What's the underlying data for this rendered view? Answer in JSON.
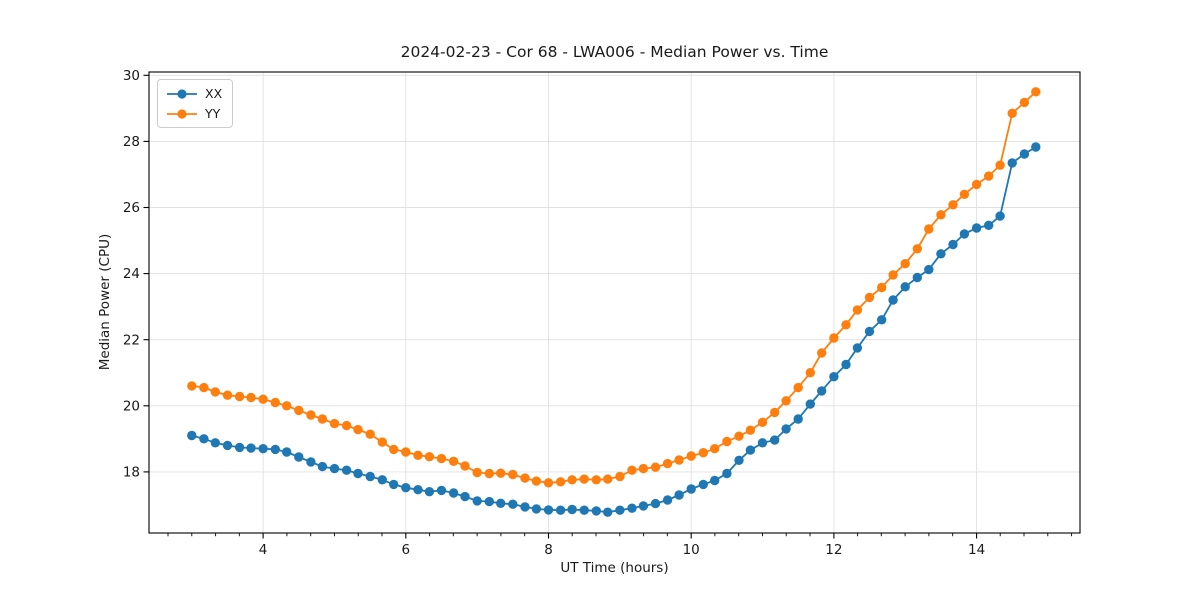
{
  "title": "2024-02-23 - Cor 68 - LWA006 - Median Power vs. Time",
  "chart_data": {
    "type": "line",
    "title": "2024-02-23 - Cor 68 - LWA006 - Median Power vs. Time",
    "xlabel": "UT Time (hours)",
    "ylabel": "Median Power (CPU)",
    "xlim": [
      2.4,
      15.45
    ],
    "ylim": [
      16.15,
      30.1
    ],
    "xticks": [
      4,
      6,
      8,
      10,
      12,
      14
    ],
    "yticks": [
      18,
      20,
      22,
      24,
      26,
      28,
      30
    ],
    "x_minor_step": 0.3333,
    "grid": true,
    "grid_color": "#e0e0e0",
    "spine_color": "#000000",
    "legend_position": "upper left",
    "marker": "circle",
    "x": [
      3.0,
      3.17,
      3.33,
      3.5,
      3.67,
      3.83,
      4.0,
      4.17,
      4.33,
      4.5,
      4.67,
      4.83,
      5.0,
      5.17,
      5.33,
      5.5,
      5.67,
      5.83,
      6.0,
      6.17,
      6.33,
      6.5,
      6.67,
      6.83,
      7.0,
      7.17,
      7.33,
      7.5,
      7.67,
      7.83,
      8.0,
      8.17,
      8.33,
      8.5,
      8.67,
      8.83,
      9.0,
      9.17,
      9.33,
      9.5,
      9.67,
      9.83,
      10.0,
      10.17,
      10.33,
      10.5,
      10.67,
      10.83,
      11.0,
      11.17,
      11.33,
      11.5,
      11.67,
      11.83,
      12.0,
      12.17,
      12.33,
      12.5,
      12.67,
      12.83,
      13.0,
      13.17,
      13.33,
      13.5,
      13.67,
      13.83,
      14.0,
      14.17,
      14.33,
      14.5,
      14.67,
      14.83
    ],
    "series": [
      {
        "name": "XX",
        "color": "#1f77b4",
        "values": [
          19.1,
          19.0,
          18.88,
          18.8,
          18.74,
          18.72,
          18.7,
          18.68,
          18.6,
          18.45,
          18.3,
          18.16,
          18.1,
          18.05,
          17.95,
          17.86,
          17.76,
          17.62,
          17.52,
          17.46,
          17.4,
          17.44,
          17.36,
          17.25,
          17.12,
          17.1,
          17.05,
          17.02,
          16.94,
          16.88,
          16.85,
          16.84,
          16.86,
          16.84,
          16.82,
          16.78,
          16.84,
          16.9,
          16.97,
          17.04,
          17.15,
          17.3,
          17.48,
          17.62,
          17.74,
          17.95,
          18.35,
          18.66,
          18.88,
          18.96,
          19.3,
          19.6,
          20.05,
          20.45,
          20.88,
          21.25,
          21.75,
          22.25,
          22.6,
          23.2,
          23.6,
          23.88,
          24.12,
          24.6,
          24.88,
          25.2,
          25.38,
          25.46,
          25.74,
          27.35,
          27.62,
          27.83
        ]
      },
      {
        "name": "YY",
        "color": "#ff7f0e",
        "values": [
          20.6,
          20.55,
          20.42,
          20.32,
          20.28,
          20.25,
          20.2,
          20.1,
          20.0,
          19.86,
          19.72,
          19.6,
          19.46,
          19.4,
          19.28,
          19.14,
          18.9,
          18.68,
          18.6,
          18.5,
          18.46,
          18.4,
          18.32,
          18.18,
          17.98,
          17.95,
          17.96,
          17.92,
          17.81,
          17.72,
          17.67,
          17.7,
          17.76,
          17.78,
          17.76,
          17.78,
          17.86,
          18.05,
          18.1,
          18.14,
          18.25,
          18.36,
          18.48,
          18.58,
          18.7,
          18.92,
          19.08,
          19.26,
          19.5,
          19.8,
          20.15,
          20.55,
          21.0,
          21.6,
          22.05,
          22.45,
          22.9,
          23.28,
          23.58,
          23.96,
          24.3,
          24.75,
          25.35,
          25.78,
          26.08,
          26.4,
          26.7,
          26.95,
          27.28,
          28.85,
          29.18,
          29.5
        ]
      }
    ]
  }
}
